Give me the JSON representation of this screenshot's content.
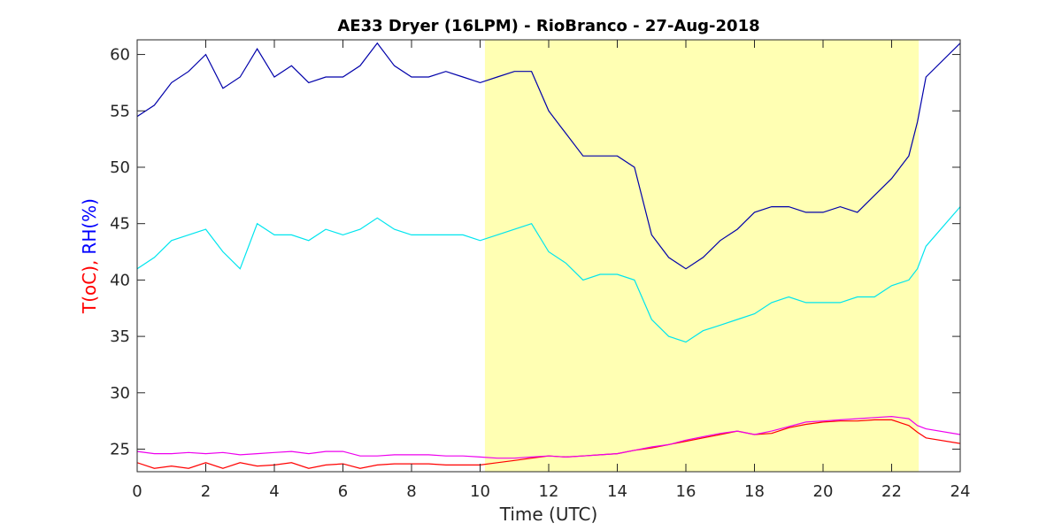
{
  "chart_data": {
    "type": "line",
    "title": "AE33 Dryer (16LPM)  - RioBranco - 27-Aug-2018",
    "xlabel": "Time (UTC)",
    "ylabel": [
      {
        "text": "T(oC),",
        "color": "#ff0000"
      },
      {
        "text": "RH(%)",
        "color": "#0000ff"
      }
    ],
    "highlight": {
      "range": [
        10.14,
        22.79
      ],
      "color": "#ffffb3"
    },
    "x": [
      0,
      0.5,
      1,
      1.5,
      2,
      2.5,
      3,
      3.5,
      4,
      4.5,
      5,
      5.5,
      6,
      6.5,
      7,
      7.5,
      8,
      8.5,
      9,
      9.5,
      10,
      10.5,
      11,
      11.5,
      12,
      12.5,
      13,
      13.5,
      14,
      14.5,
      15,
      15.5,
      16,
      16.5,
      17,
      17.5,
      18,
      18.5,
      19,
      19.5,
      20,
      20.5,
      21,
      21.5,
      22,
      22.5,
      22.75,
      23,
      24
    ],
    "series": [
      {
        "color": "#0000aa",
        "values": [
          54.5,
          55.5,
          57.5,
          58.5,
          60,
          57,
          58,
          60.5,
          58,
          59,
          57.5,
          58,
          58,
          59,
          61,
          59,
          58,
          58,
          58.5,
          58,
          57.5,
          58,
          58.5,
          58.5,
          55,
          53,
          51,
          51,
          51,
          50,
          44,
          42,
          41,
          42,
          43.5,
          44.5,
          46,
          46.5,
          46.5,
          46,
          46,
          46.5,
          46,
          47.5,
          49,
          51,
          54,
          58,
          61
        ]
      },
      {
        "color": "#00e5ee",
        "values": [
          41,
          42,
          43.5,
          44,
          44.5,
          42.5,
          41,
          45,
          44,
          44,
          43.5,
          44.5,
          44,
          44.5,
          45.5,
          44.5,
          44,
          44,
          44,
          44,
          43.5,
          44,
          44.5,
          45,
          42.5,
          41.5,
          40,
          40.5,
          40.5,
          40,
          36.5,
          35,
          34.5,
          35.5,
          36,
          36.5,
          37,
          38,
          38.5,
          38,
          38,
          38,
          38.5,
          38.5,
          39.5,
          40,
          41,
          43,
          46.5
        ]
      },
      {
        "color": "#ff0000",
        "values": [
          23.8,
          23.3,
          23.5,
          23.3,
          23.8,
          23.3,
          23.8,
          23.5,
          23.6,
          23.8,
          23.3,
          23.6,
          23.7,
          23.3,
          23.6,
          23.7,
          23.7,
          23.7,
          23.6,
          23.6,
          23.6,
          23.8,
          24,
          24.2,
          24.4,
          24.3,
          24.4,
          24.5,
          24.6,
          24.9,
          25.1,
          25.4,
          25.7,
          26,
          26.3,
          26.6,
          26.3,
          26.4,
          26.9,
          27.2,
          27.4,
          27.5,
          27.5,
          27.6,
          27.6,
          27.1,
          26.5,
          26,
          25.5
        ]
      },
      {
        "color": "#ee00ee",
        "values": [
          24.8,
          24.6,
          24.6,
          24.7,
          24.6,
          24.7,
          24.5,
          24.6,
          24.7,
          24.8,
          24.6,
          24.8,
          24.8,
          24.4,
          24.4,
          24.5,
          24.5,
          24.5,
          24.4,
          24.4,
          24.3,
          24.2,
          24.2,
          24.3,
          24.4,
          24.3,
          24.4,
          24.5,
          24.6,
          24.9,
          25.2,
          25.4,
          25.8,
          26.1,
          26.4,
          26.6,
          26.3,
          26.6,
          27,
          27.4,
          27.5,
          27.6,
          27.7,
          27.8,
          27.9,
          27.7,
          27.1,
          26.8,
          26.3
        ]
      }
    ],
    "xlim": [
      0,
      24
    ],
    "xticks": [
      0,
      2,
      4,
      6,
      8,
      10,
      12,
      14,
      16,
      18,
      20,
      22,
      24
    ],
    "ylim": [
      23,
      61.3
    ],
    "yticks": [
      25,
      30,
      35,
      40,
      45,
      50,
      55,
      60
    ]
  }
}
